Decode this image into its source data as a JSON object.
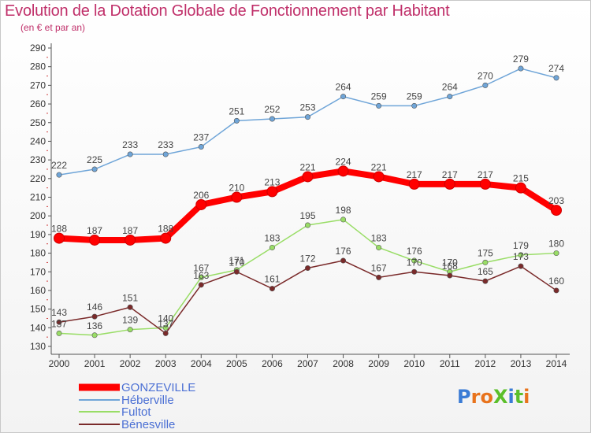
{
  "header": {
    "title": "Evolution de la Dotation Globale de Fonctionnement par Habitant",
    "subtitle": "(en € et par an)"
  },
  "logo": {
    "text": "ProXiti"
  },
  "colors": {
    "title": "#c0306a",
    "legend_text": "#4a6fd4",
    "axis": "#555555",
    "grid": "#dddddd"
  },
  "chart_data": {
    "type": "line",
    "title": "Evolution de la Dotation Globale de Fonctionnement par Habitant",
    "subtitle": "(en € et par an)",
    "xlabel": "",
    "ylabel": "",
    "x": [
      "2000",
      "2001",
      "2002",
      "2003",
      "2004",
      "2005",
      "2006",
      "2007",
      "2008",
      "2009",
      "2010",
      "2011",
      "2012",
      "2013",
      "2014"
    ],
    "ylim": [
      130,
      290
    ],
    "yticks": [
      130,
      140,
      150,
      160,
      170,
      180,
      190,
      200,
      210,
      220,
      230,
      240,
      250,
      260,
      270,
      280,
      290
    ],
    "grid": false,
    "legend_position": "bottom-left",
    "series": [
      {
        "name": "GONZEVILLE",
        "color": "#ff0000",
        "values": [
          188,
          187,
          187,
          188,
          206,
          210,
          213,
          221,
          224,
          221,
          217,
          217,
          217,
          215,
          203
        ],
        "labels": [
          "188",
          "187",
          "187",
          "188",
          "206",
          "210",
          "213",
          "221",
          "224",
          "221",
          "217",
          "217",
          "217",
          "215",
          "203"
        ]
      },
      {
        "name": "Héberville",
        "color": "#6fa5d8",
        "values": [
          222,
          225,
          233,
          233,
          237,
          251,
          252,
          253,
          264,
          259,
          259,
          264,
          270,
          279,
          274
        ],
        "labels": [
          "222",
          "225",
          "233",
          "233",
          "237",
          "251",
          "252",
          "253",
          "264",
          "259",
          "259",
          "264",
          "270",
          "279",
          "274"
        ]
      },
      {
        "name": "Fultot",
        "color": "#99dd66",
        "values": [
          137,
          136,
          139,
          140,
          167,
          171,
          183,
          195,
          198,
          183,
          176,
          170,
          175,
          179,
          180
        ],
        "labels": [
          "137",
          "136",
          "139",
          "140",
          "167",
          "171",
          "183",
          "195",
          "198",
          "183",
          "176",
          "170",
          "175",
          "179",
          "180"
        ]
      },
      {
        "name": "Bénesville",
        "color": "#7a2a2a",
        "values": [
          143,
          146,
          151,
          137,
          163,
          170,
          161,
          172,
          176,
          167,
          170,
          168,
          165,
          173,
          160
        ],
        "labels": [
          "143",
          "146",
          "151",
          "137",
          "163",
          "170",
          "161",
          "172",
          "176",
          "167",
          "170",
          "168",
          "165",
          "173",
          "160"
        ]
      }
    ]
  }
}
